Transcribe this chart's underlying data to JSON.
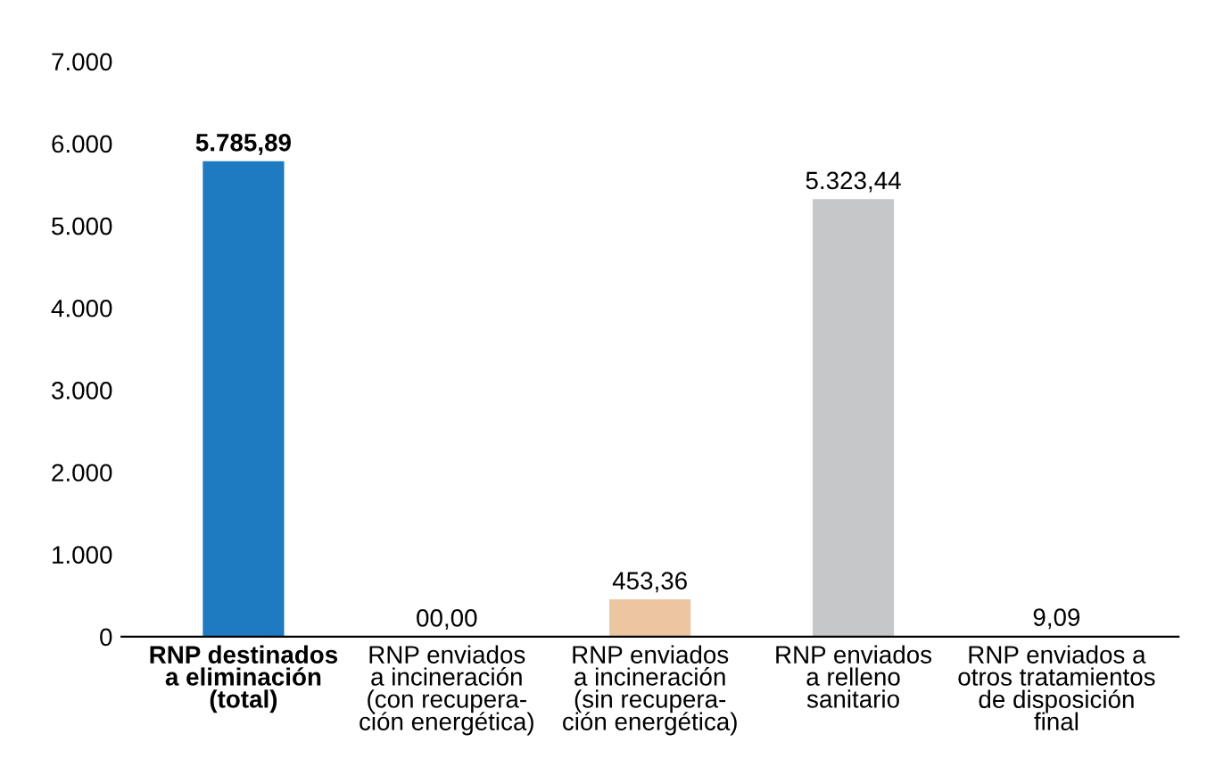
{
  "chart_data": {
    "type": "bar",
    "categories": [
      "RNP destinados\na eliminación\n(total)",
      "RNP enviados\na incineración\n(con recupera-\nción energética)",
      "RNP enviados\na incineración\n(sin recupera-\nción energética)",
      "RNP enviados\na relleno\nsanitario",
      "RNP enviados a\notros tratamientos\nde disposición\nfinal"
    ],
    "values": [
      5785.89,
      0,
      453.36,
      5323.44,
      9.09
    ],
    "colors": [
      "#1f7bc1",
      "#d9825b",
      "#ebc6a0",
      "#c5c7c8",
      "#d9825b"
    ],
    "value_labels": [
      "5.785,89",
      "00,00",
      "453,36",
      "5.323,44",
      "9,09"
    ],
    "ylim": [
      0,
      7000
    ],
    "yticks": [
      {
        "value": 0,
        "label": "0"
      },
      {
        "value": 1000,
        "label": "1.000"
      },
      {
        "value": 2000,
        "label": "2.000"
      },
      {
        "value": 3000,
        "label": "3.000"
      },
      {
        "value": 4000,
        "label": "4.000"
      },
      {
        "value": 5000,
        "label": "5.000"
      },
      {
        "value": 6000,
        "label": "6.000"
      },
      {
        "value": 7000,
        "label": "7.000"
      }
    ],
    "grid": false,
    "legend": false
  }
}
